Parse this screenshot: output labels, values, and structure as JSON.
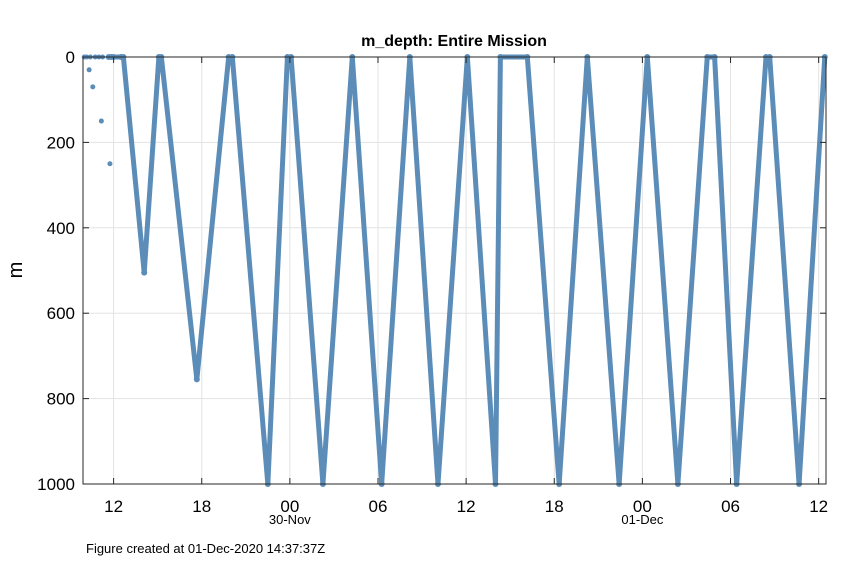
{
  "chart_data": {
    "type": "line",
    "title": "m_depth: Entire Mission",
    "xlabel": "",
    "ylabel": "m",
    "ylim": [
      1000,
      0
    ],
    "y_reversed": true,
    "xlim": [
      "2020-11-29T09:55",
      "2020-12-01T12:30"
    ],
    "x_tick_labels": [
      "12",
      "18",
      "00",
      "06",
      "12",
      "18",
      "00",
      "06",
      "12"
    ],
    "x_ticks": [
      "2020-11-29T12:00",
      "2020-11-29T18:00",
      "2020-11-30T00:00",
      "2020-11-30T06:00",
      "2020-11-30T12:00",
      "2020-11-30T18:00",
      "2020-12-01T00:00",
      "2020-12-01T06:00",
      "2020-12-01T12:00"
    ],
    "date_labels": [
      {
        "x": "2020-11-30T00:00",
        "text": "30-Nov"
      },
      {
        "x": "2020-12-01T00:00",
        "text": "01-Dec"
      }
    ],
    "y_ticks": [
      0,
      200,
      400,
      600,
      800,
      1000
    ],
    "y_tick_labels": [
      "0",
      "200",
      "400",
      "600",
      "800",
      "1000"
    ],
    "grid": true,
    "marker": "dot",
    "series": [
      {
        "name": "",
        "color": "#5b8db8",
        "x": [
          "2020-11-29T11:40",
          "2020-11-29T11:50",
          "2020-11-29T12:00",
          "2020-11-29T12:30",
          "2020-11-29T12:40",
          "2020-11-29T14:05",
          "2020-11-29T15:05",
          "2020-11-29T15:15",
          "2020-11-29T17:40",
          "2020-11-29T19:50",
          "2020-11-29T20:05",
          "2020-11-29T22:30",
          "2020-11-29T23:50",
          "2020-11-30T00:05",
          "2020-11-30T02:15",
          "2020-11-30T04:15",
          "2020-11-30T06:15",
          "2020-11-30T08:10",
          "2020-11-30T10:05",
          "2020-11-30T12:05",
          "2020-11-30T14:00",
          "2020-11-30T14:20",
          "2020-11-30T16:10",
          "2020-11-30T18:20",
          "2020-11-30T20:15",
          "2020-11-30T22:25",
          "2020-12-01T00:20",
          "2020-12-01T02:25",
          "2020-12-01T04:25",
          "2020-12-01T04:55",
          "2020-12-01T06:25",
          "2020-12-01T08:25",
          "2020-12-01T08:40",
          "2020-12-01T10:40",
          "2020-12-01T12:25"
        ],
        "y": [
          0,
          0,
          0,
          0,
          0,
          505,
          0,
          0,
          755,
          0,
          0,
          1000,
          0,
          0,
          1000,
          0,
          1000,
          0,
          1000,
          0,
          1000,
          0,
          0,
          1000,
          0,
          1000,
          0,
          1000,
          0,
          0,
          1000,
          0,
          0,
          1000,
          0
        ]
      },
      {
        "name": "",
        "color": "#5b8db8",
        "mode": "markers",
        "x": [
          "2020-11-29T10:00",
          "2020-11-29T10:10",
          "2020-11-29T10:20",
          "2020-11-29T10:25",
          "2020-11-29T10:35",
          "2020-11-29T10:45",
          "2020-11-29T11:00",
          "2020-11-29T11:10",
          "2020-11-29T11:15",
          "2020-11-29T11:45",
          "2020-11-29T12:15"
        ],
        "y": [
          0,
          0,
          30,
          0,
          70,
          0,
          0,
          150,
          0,
          250,
          0
        ]
      }
    ],
    "footer": "Figure created at 01-Dec-2020 14:37:37Z"
  }
}
